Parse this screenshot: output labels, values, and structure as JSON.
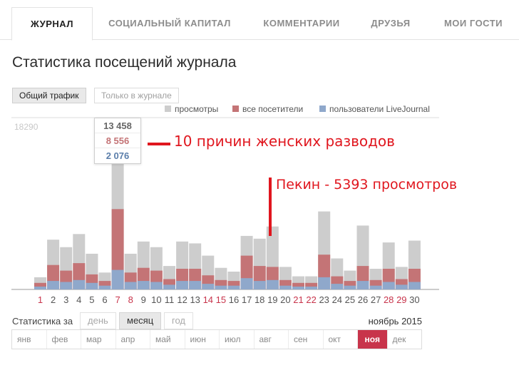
{
  "tabs": [
    {
      "label": "ЖУРНАЛ",
      "active": true
    },
    {
      "label": "СОЦИАЛЬНЫЙ КАПИТАЛ",
      "active": false
    },
    {
      "label": "КОММЕНТАРИИ",
      "active": false
    },
    {
      "label": "ДРУЗЬЯ",
      "active": false
    },
    {
      "label": "МОИ ГОСТИ",
      "active": false
    }
  ],
  "title": "Статистика посещений журнала",
  "traffic_toggle": {
    "all": "Общий трафик",
    "journal_only": "Только в журнале"
  },
  "legend": {
    "views": "просмотры",
    "visitors": "все посетители",
    "lj_users": "пользователи LiveJournal"
  },
  "colors": {
    "views": "#cdcdcd",
    "visitors": "#c47476",
    "lj_users": "#8fa8cb",
    "weekday": "#555555",
    "weekend": "#c8344b",
    "annotation": "#e0161e"
  },
  "tooltip": {
    "views": "13 458",
    "visitors": "8 556",
    "lj_users": "2 076"
  },
  "annotations": {
    "first": "10 причин женских разводов",
    "second": "Пекин - 5393 просмотров"
  },
  "period": {
    "label": "Статистика за",
    "options": [
      "день",
      "месяц",
      "год"
    ],
    "selected": "месяц",
    "current_month": "ноябрь 2015"
  },
  "months": [
    "янв",
    "фев",
    "мар",
    "апр",
    "май",
    "июн",
    "июл",
    "авг",
    "сен",
    "окт",
    "ноя",
    "дек"
  ],
  "selected_month": "ноя",
  "chart_data": {
    "type": "bar",
    "stacked_overlay": true,
    "ymax_label": "18290",
    "ylim": [
      0,
      18290
    ],
    "categories": [
      "1",
      "2",
      "3",
      "4",
      "5",
      "6",
      "7",
      "8",
      "9",
      "10",
      "11",
      "12",
      "13",
      "14",
      "15",
      "16",
      "17",
      "18",
      "19",
      "20",
      "21",
      "22",
      "23",
      "24",
      "25",
      "26",
      "27",
      "28",
      "29",
      "30"
    ],
    "weekend_days": [
      "1",
      "7",
      "8",
      "14",
      "15",
      "21",
      "22",
      "28",
      "29"
    ],
    "series": [
      {
        "name": "просмотры",
        "values": [
          1300,
          5300,
          4500,
          5900,
          3800,
          1800,
          13458,
          3800,
          5100,
          4500,
          2500,
          5100,
          4900,
          3600,
          2300,
          1900,
          5700,
          5400,
          6700,
          2400,
          1400,
          1400,
          8300,
          3300,
          2000,
          6800,
          2200,
          5000,
          2400,
          5200
        ]
      },
      {
        "name": "все посетители",
        "values": [
          700,
          2600,
          2000,
          2800,
          1600,
          900,
          8556,
          1800,
          2300,
          2000,
          1100,
          2200,
          2200,
          1500,
          1000,
          900,
          3600,
          2500,
          2400,
          1000,
          700,
          700,
          3700,
          1400,
          900,
          2500,
          1000,
          2200,
          1100,
          2200
        ]
      },
      {
        "name": "пользователи LiveJournal",
        "values": [
          300,
          900,
          800,
          1000,
          700,
          400,
          2076,
          800,
          900,
          800,
          500,
          900,
          900,
          600,
          400,
          400,
          1200,
          900,
          1000,
          400,
          300,
          300,
          1300,
          600,
          400,
          900,
          400,
          800,
          500,
          800
        ]
      }
    ]
  }
}
